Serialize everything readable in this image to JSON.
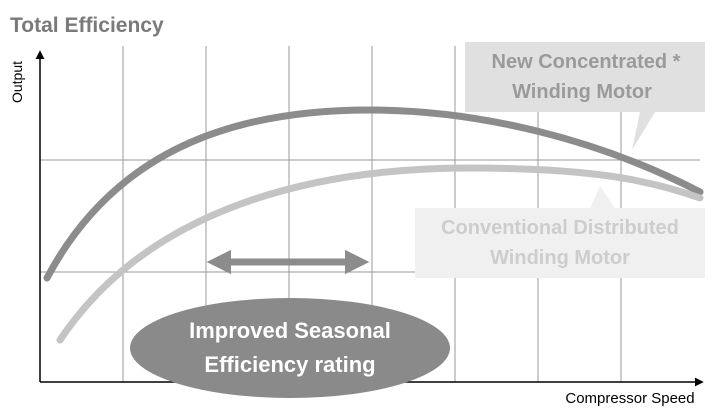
{
  "title": "Total Efficiency",
  "axes": {
    "y_label": "Output",
    "x_label": "Compressor Speed"
  },
  "callouts": [
    {
      "lines": [
        "New Concentrated *",
        "Winding Motor"
      ]
    },
    {
      "lines": [
        "Conventional Distributed",
        "Winding Motor"
      ]
    }
  ],
  "highlight": {
    "lines": [
      "Improved Seasonal",
      "Efficiency rating"
    ]
  }
}
